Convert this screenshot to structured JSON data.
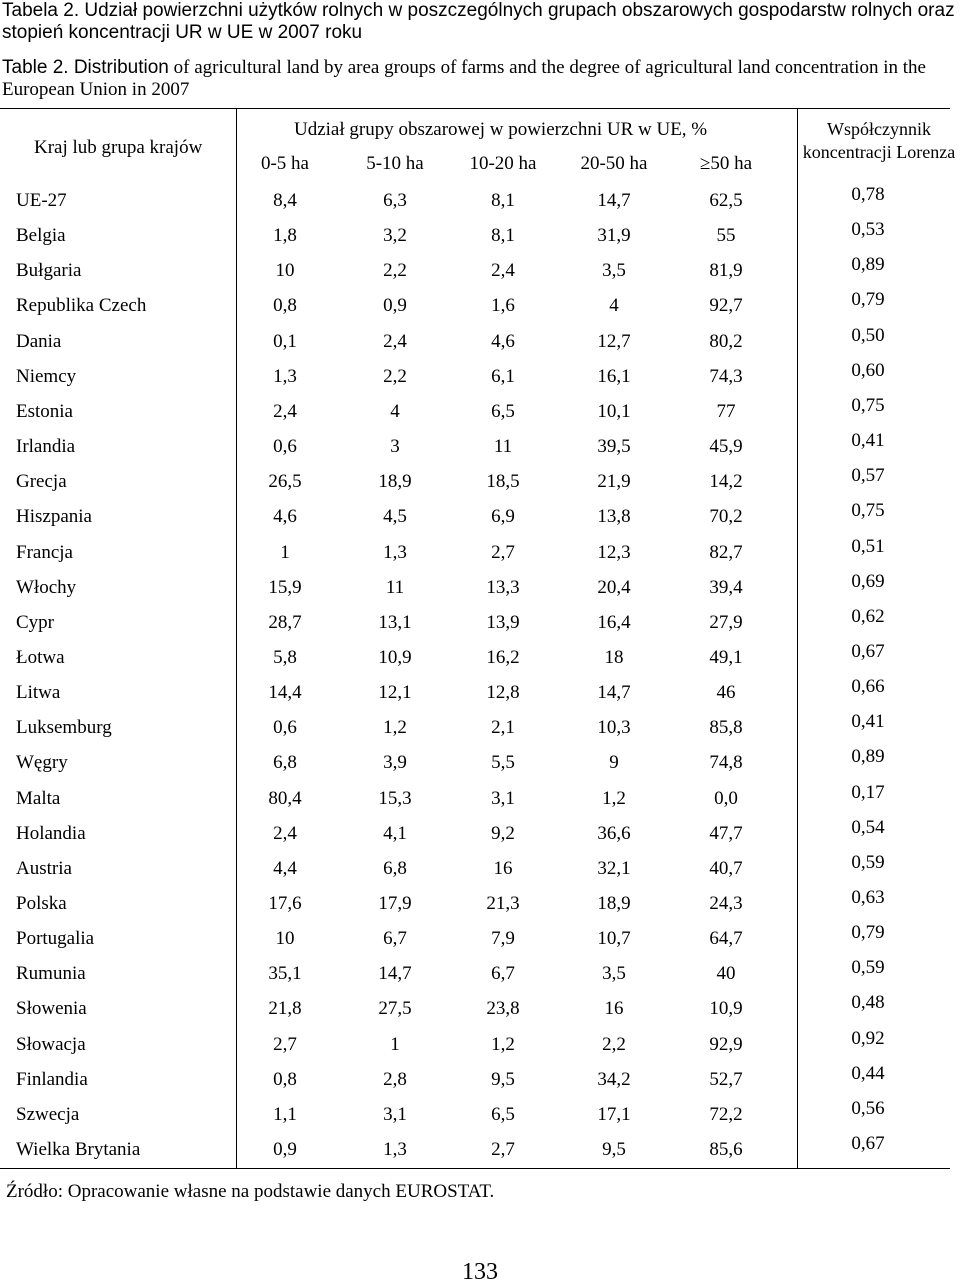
{
  "title_pl": "Tabela 2. Udział powierzchni użytków rolnych w poszczególnych grupach obszarowych gospodarstw rolnych oraz stopień koncentracji UR w UE w 2007 roku",
  "title_en_lead": "Table 2. Distribution",
  "title_en_rest": " of agricultural land by area groups of farms and the degree of agricultural land concentration in the European Union in 2007",
  "header": {
    "country": "Kraj lub grupa krajów",
    "share": "Udział grupy obszarowej w powierzchni UR w UE, %",
    "coef": "Współczynnik koncentracji Lorenza",
    "sizes": [
      "0-5 ha",
      "5-10 ha",
      "10-20 ha",
      "20-50 ha",
      "≥50 ha"
    ]
  },
  "rows": [
    {
      "country": "UE-27",
      "values": [
        "8,4",
        "6,3",
        "8,1",
        "14,7",
        "62,5"
      ],
      "coef": "0,78"
    },
    {
      "country": "Belgia",
      "values": [
        "1,8",
        "3,2",
        "8,1",
        "31,9",
        "55"
      ],
      "coef": "0,53"
    },
    {
      "country": "Bułgaria",
      "values": [
        "10",
        "2,2",
        "2,4",
        "3,5",
        "81,9"
      ],
      "coef": "0,89"
    },
    {
      "country": "Republika Czech",
      "values": [
        "0,8",
        "0,9",
        "1,6",
        "4",
        "92,7"
      ],
      "coef": "0,79"
    },
    {
      "country": "Dania",
      "values": [
        "0,1",
        "2,4",
        "4,6",
        "12,7",
        "80,2"
      ],
      "coef": "0,50"
    },
    {
      "country": "Niemcy",
      "values": [
        "1,3",
        "2,2",
        "6,1",
        "16,1",
        "74,3"
      ],
      "coef": "0,60"
    },
    {
      "country": "Estonia",
      "values": [
        "2,4",
        "4",
        "6,5",
        "10,1",
        "77"
      ],
      "coef": "0,75"
    },
    {
      "country": "Irlandia",
      "values": [
        "0,6",
        "3",
        "11",
        "39,5",
        "45,9"
      ],
      "coef": "0,41"
    },
    {
      "country": "Grecja",
      "values": [
        "26,5",
        "18,9",
        "18,5",
        "21,9",
        "14,2"
      ],
      "coef": "0,57"
    },
    {
      "country": "Hiszpania",
      "values": [
        "4,6",
        "4,5",
        "6,9",
        "13,8",
        "70,2"
      ],
      "coef": "0,75"
    },
    {
      "country": "Francja",
      "values": [
        "1",
        "1,3",
        "2,7",
        "12,3",
        "82,7"
      ],
      "coef": "0,51"
    },
    {
      "country": "Włochy",
      "values": [
        "15,9",
        "11",
        "13,3",
        "20,4",
        "39,4"
      ],
      "coef": "0,69"
    },
    {
      "country": "Cypr",
      "values": [
        "28,7",
        "13,1",
        "13,9",
        "16,4",
        "27,9"
      ],
      "coef": "0,62"
    },
    {
      "country": "Łotwa",
      "values": [
        "5,8",
        "10,9",
        "16,2",
        "18",
        "49,1"
      ],
      "coef": "0,67"
    },
    {
      "country": "Litwa",
      "values": [
        "14,4",
        "12,1",
        "12,8",
        "14,7",
        "46"
      ],
      "coef": "0,66"
    },
    {
      "country": "Luksemburg",
      "values": [
        "0,6",
        "1,2",
        "2,1",
        "10,3",
        "85,8"
      ],
      "coef": "0,41"
    },
    {
      "country": "Węgry",
      "values": [
        "6,8",
        "3,9",
        "5,5",
        "9",
        "74,8"
      ],
      "coef": "0,89"
    },
    {
      "country": "Malta",
      "values": [
        "80,4",
        "15,3",
        "3,1",
        "1,2",
        "0,0"
      ],
      "coef": "0,17"
    },
    {
      "country": "Holandia",
      "values": [
        "2,4",
        "4,1",
        "9,2",
        "36,6",
        "47,7"
      ],
      "coef": "0,54"
    },
    {
      "country": "Austria",
      "values": [
        "4,4",
        "6,8",
        "16",
        "32,1",
        "40,7"
      ],
      "coef": "0,59"
    },
    {
      "country": "Polska",
      "values": [
        "17,6",
        "17,9",
        "21,3",
        "18,9",
        "24,3"
      ],
      "coef": "0,63"
    },
    {
      "country": "Portugalia",
      "values": [
        "10",
        "6,7",
        "7,9",
        "10,7",
        "64,7"
      ],
      "coef": "0,79"
    },
    {
      "country": "Rumunia",
      "values": [
        "35,1",
        "14,7",
        "6,7",
        "3,5",
        "40"
      ],
      "coef": "0,59"
    },
    {
      "country": "Słowenia",
      "values": [
        "21,8",
        "27,5",
        "23,8",
        "16",
        "10,9"
      ],
      "coef": "0,48"
    },
    {
      "country": "Słowacja",
      "values": [
        "2,7",
        "1",
        "1,2",
        "2,2",
        "92,9"
      ],
      "coef": "0,92"
    },
    {
      "country": "Finlandia",
      "values": [
        "0,8",
        "2,8",
        "9,5",
        "34,2",
        "52,7"
      ],
      "coef": "0,44"
    },
    {
      "country": "Szwecja",
      "values": [
        "1,1",
        "3,1",
        "6,5",
        "17,1",
        "72,2"
      ],
      "coef": "0,56"
    },
    {
      "country": "Wielka Brytania",
      "values": [
        "0,9",
        "1,3",
        "2,7",
        "9,5",
        "85,6"
      ],
      "coef": "0,67"
    }
  ],
  "source": "Źródło: Opracowanie własne na podstawie danych EUROSTAT.",
  "page_number": "133"
}
